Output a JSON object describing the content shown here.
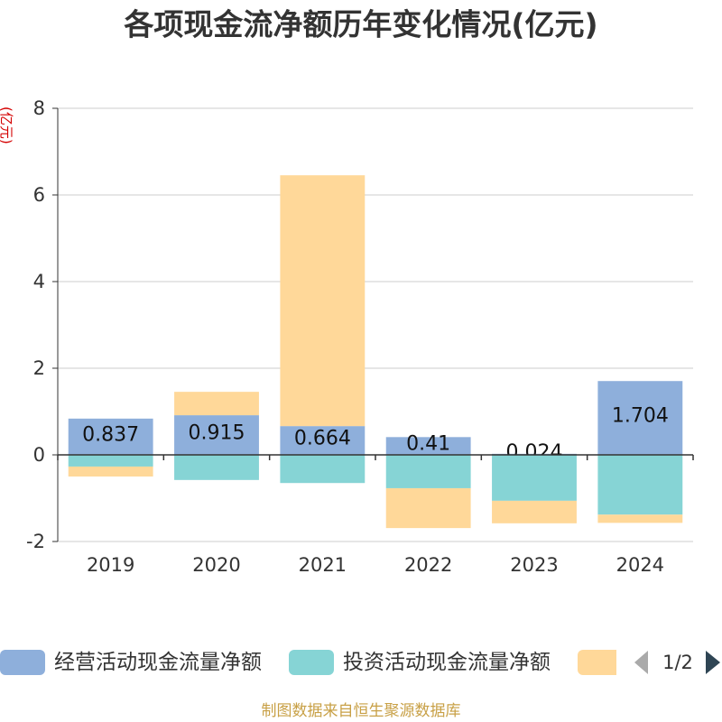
{
  "chart_data": {
    "type": "bar",
    "stacked": true,
    "title": "各项现金流净额历年变化情况(亿元)",
    "ylabel": "(亿元)",
    "categories": [
      "2019",
      "2020",
      "2021",
      "2022",
      "2023",
      "2024"
    ],
    "ylim": [
      -2,
      8
    ],
    "yticks": [
      -2,
      0,
      2,
      4,
      6,
      8
    ],
    "grid": true,
    "legend_position": "bottom",
    "series": [
      {
        "name": "经营活动现金流量净额",
        "color": "#8eafdb",
        "values": [
          0.837,
          0.915,
          0.664,
          0.41,
          0.024,
          1.704
        ],
        "data_labels": true
      },
      {
        "name": "投资活动现金流量净额",
        "color": "#86d4d5",
        "values": [
          -0.27,
          -0.58,
          -0.65,
          -0.77,
          -1.06,
          -1.38
        ]
      },
      {
        "color": "#ffd899",
        "values": [
          -0.23,
          0.54,
          5.79,
          -0.92,
          -0.52,
          -0.19
        ]
      }
    ]
  },
  "legend": {
    "page": "1/2",
    "prev_icon": "triangle-left-icon",
    "next_icon": "triangle-right-icon"
  },
  "footer": "制图数据来自恒生聚源数据库",
  "colors": {
    "unit_label": "#d40000",
    "footer": "#c8a046",
    "pager_active": "#2f4554",
    "pager_inactive": "#aaaaaa"
  }
}
